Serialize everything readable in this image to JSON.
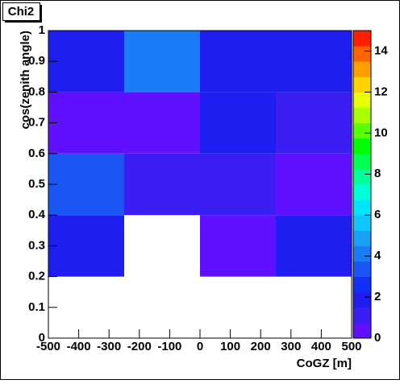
{
  "chart_data": {
    "type": "heatmap",
    "title": "Chi2",
    "x_label": "CoGZ [m]",
    "y_label": "cos(zenith angle)",
    "x_bins": [
      -500,
      -250,
      0,
      250,
      500
    ],
    "y_bins": [
      0,
      0.2,
      0.4,
      0.6,
      0.8,
      1
    ],
    "z": [
      [
        null,
        null,
        null,
        null
      ],
      [
        1.7,
        null,
        0.5,
        1.7
      ],
      [
        3.2,
        1.1,
        1.1,
        0.5
      ],
      [
        0.6,
        0.6,
        1.7,
        1.1
      ],
      [
        1.7,
        4.4,
        1.7,
        1.7
      ]
    ],
    "xlim": [
      -500,
      500
    ],
    "xticks": [
      -500,
      -400,
      -300,
      -200,
      -100,
      0,
      100,
      200,
      300,
      400,
      500
    ],
    "ylim": [
      0,
      1
    ],
    "yticks": [
      0,
      0.1,
      0.2,
      0.3,
      0.4,
      0.5,
      0.6,
      0.7,
      0.8,
      0.9,
      1
    ],
    "zlim": [
      0,
      15
    ],
    "zticks": [
      0,
      2,
      4,
      6,
      8,
      10,
      12,
      14
    ],
    "colorscale": [
      "#6010ff",
      "#3a1ef2",
      "#1e1ef0",
      "#1030f5",
      "#1a55f5",
      "#1a7cf8",
      "#18a0f5",
      "#10c6ff",
      "#00e6ff",
      "#00ffd8",
      "#00ff98",
      "#00ff50",
      "#00ff00",
      "#58ff00",
      "#a8ff00",
      "#e8ff00",
      "#ffd200",
      "#ffa000",
      "#ff6400",
      "#ff2000"
    ]
  }
}
